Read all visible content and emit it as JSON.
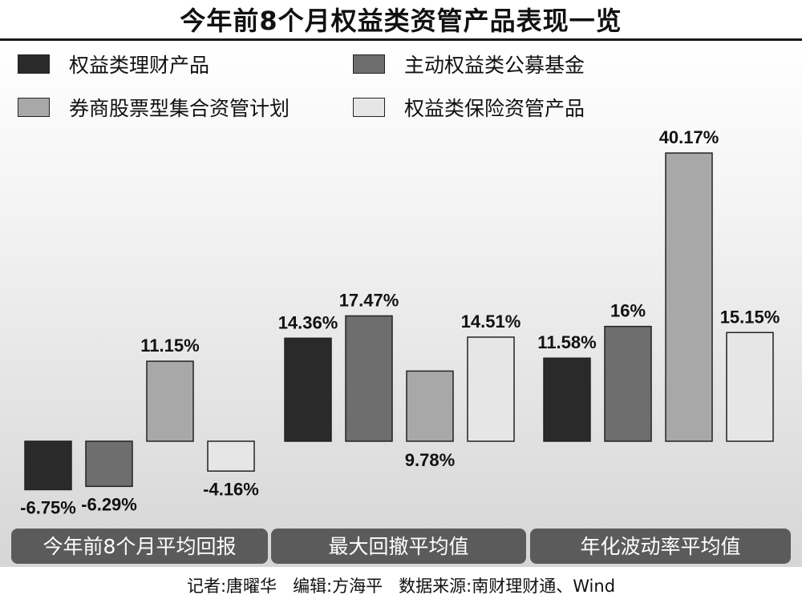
{
  "title": "今年前8个月权益类资管产品表现一览",
  "credits": {
    "reporter": "记者:唐曜华",
    "editor": "编辑:方海平",
    "source": "数据来源:南财理财通、Wind"
  },
  "colors": {
    "background_top": "#ffffff",
    "background_bottom": "#d6d6d6",
    "category_bar": "#5b5b5b"
  },
  "chart_data": {
    "type": "bar",
    "categories": [
      "今年前8个月平均回报",
      "最大回撤平均值",
      "年化波动率平均值"
    ],
    "series": [
      {
        "name": "权益类理财产品",
        "color": "#2a2a2a",
        "values": [
          -6.75,
          14.36,
          11.58
        ],
        "labels": [
          "-6.75%",
          "14.36%",
          "11.58%"
        ]
      },
      {
        "name": "主动权益类公募基金",
        "color": "#6e6e6e",
        "values": [
          -6.29,
          17.47,
          16
        ],
        "labels": [
          "-6.29%",
          "17.47%",
          "16%"
        ]
      },
      {
        "name": "券商股票型集合资管计划",
        "color": "#a8a8a8",
        "values": [
          11.15,
          9.78,
          40.17
        ],
        "labels": [
          "11.15%",
          "9.78%",
          "40.17%"
        ]
      },
      {
        "name": "权益类保险资管产品",
        "color": "#e6e6e6",
        "values": [
          -4.16,
          14.51,
          15.15
        ],
        "labels": [
          "-4.16%",
          "14.51%",
          "15.15%"
        ]
      }
    ],
    "legend": "top",
    "grid": false,
    "unit": "%"
  }
}
